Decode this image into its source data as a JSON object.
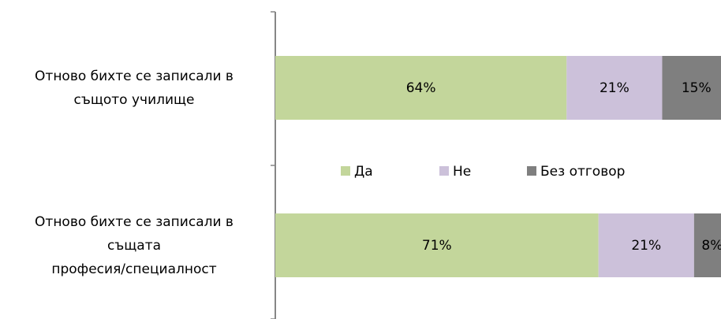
{
  "chart_data": {
    "type": "stacked-bar-horizontal",
    "categories": [
      "Отново бихте се записали в\nсъщото училище",
      "Отново бихте се записали в\nсъщата\nпрофесия/специалност"
    ],
    "series": [
      {
        "name": "Да",
        "color": "#c3d69b",
        "values": [
          64,
          71
        ],
        "value_labels": [
          "64%",
          "71%"
        ]
      },
      {
        "name": "Не",
        "color": "#ccc1da",
        "values": [
          21,
          21
        ],
        "value_labels": [
          "21%",
          "21%"
        ]
      },
      {
        "name": "Без отговор",
        "color": "#7f7f7f",
        "values": [
          15,
          8
        ],
        "value_labels": [
          "15%",
          "8%"
        ]
      }
    ],
    "legend": "center"
  }
}
